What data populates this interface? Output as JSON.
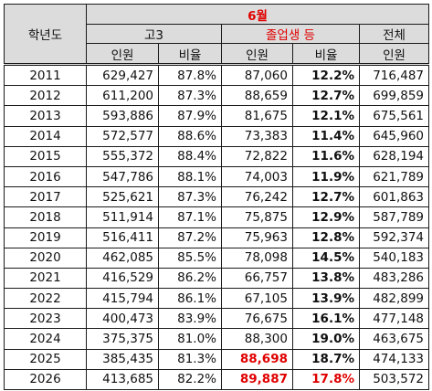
{
  "headers": {
    "year": "학년도",
    "month": "6월",
    "group_g3": "고3",
    "group_grad": "졸업생 등",
    "group_total": "전체",
    "col_people": "인원",
    "col_ratio": "비율"
  },
  "rows": [
    {
      "year": "2011",
      "g3_n": "629,427",
      "g3_r": "87.8%",
      "gr_n": "87,060",
      "gr_r": "12.2%",
      "total": "716,487"
    },
    {
      "year": "2012",
      "g3_n": "611,200",
      "g3_r": "87.3%",
      "gr_n": "88,659",
      "gr_r": "12.7%",
      "total": "699,859"
    },
    {
      "year": "2013",
      "g3_n": "593,886",
      "g3_r": "87.9%",
      "gr_n": "81,675",
      "gr_r": "12.1%",
      "total": "675,561"
    },
    {
      "year": "2014",
      "g3_n": "572,577",
      "g3_r": "88.6%",
      "gr_n": "73,383",
      "gr_r": "11.4%",
      "total": "645,960"
    },
    {
      "year": "2015",
      "g3_n": "555,372",
      "g3_r": "88.4%",
      "gr_n": "72,822",
      "gr_r": "11.6%",
      "total": "628,194"
    },
    {
      "year": "2016",
      "g3_n": "547,786",
      "g3_r": "88.1%",
      "gr_n": "74,003",
      "gr_r": "11.9%",
      "total": "621,789"
    },
    {
      "year": "2017",
      "g3_n": "525,621",
      "g3_r": "87.3%",
      "gr_n": "76,242",
      "gr_r": "12.7%",
      "total": "601,863"
    },
    {
      "year": "2018",
      "g3_n": "511,914",
      "g3_r": "87.1%",
      "gr_n": "75,875",
      "gr_r": "12.9%",
      "total": "587,789"
    },
    {
      "year": "2019",
      "g3_n": "516,411",
      "g3_r": "87.2%",
      "gr_n": "75,963",
      "gr_r": "12.8%",
      "total": "592,374"
    },
    {
      "year": "2020",
      "g3_n": "462,085",
      "g3_r": "85.5%",
      "gr_n": "78,098",
      "gr_r": "14.5%",
      "total": "540,183"
    },
    {
      "year": "2021",
      "g3_n": "416,529",
      "g3_r": "86.2%",
      "gr_n": "66,757",
      "gr_r": "13.8%",
      "total": "483,286"
    },
    {
      "year": "2022",
      "g3_n": "415,794",
      "g3_r": "86.1%",
      "gr_n": "67,105",
      "gr_r": "13.9%",
      "total": "482,899"
    },
    {
      "year": "2023",
      "g3_n": "400,473",
      "g3_r": "83.9%",
      "gr_n": "76,675",
      "gr_r": "16.1%",
      "total": "477,148"
    },
    {
      "year": "2024",
      "g3_n": "375,375",
      "g3_r": "81.0%",
      "gr_n": "88,300",
      "gr_r": "19.0%",
      "total": "463,675"
    },
    {
      "year": "2025",
      "g3_n": "385,435",
      "g3_r": "81.3%",
      "gr_n": "88,698",
      "gr_r": "18.7%",
      "total": "474,133"
    },
    {
      "year": "2026",
      "g3_n": "413,685",
      "g3_r": "82.2%",
      "gr_n": "89,887",
      "gr_r": "17.8%",
      "total": "503,572"
    }
  ],
  "colors": {
    "highlight": "#e00000",
    "header_bg": "#dcdcdc",
    "border": "#1a1a1a"
  }
}
